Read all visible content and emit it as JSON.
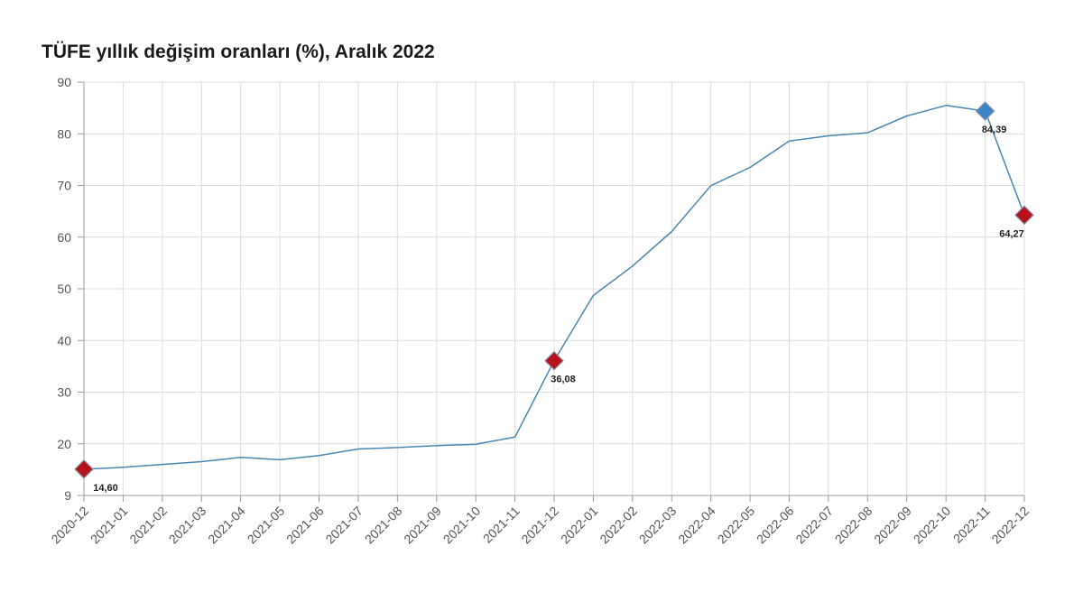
{
  "chart_data": {
    "type": "line",
    "title": "TÜFE yıllık değişim oranları (%), Aralık 2022",
    "xlabel": "",
    "ylabel": "",
    "ylim": [
      9,
      90
    ],
    "y_ticks": [
      9,
      20,
      30,
      40,
      50,
      60,
      70,
      80,
      90
    ],
    "grid": true,
    "categories": [
      "2020-12",
      "2021-01",
      "2021-02",
      "2021-03",
      "2021-04",
      "2021-05",
      "2021-06",
      "2021-07",
      "2021-08",
      "2021-09",
      "2021-10",
      "2021-11",
      "2021-12",
      "2022-01",
      "2022-02",
      "2022-03",
      "2022-04",
      "2022-05",
      "2022-06",
      "2022-07",
      "2022-08",
      "2022-09",
      "2022-10",
      "2022-11",
      "2022-12"
    ],
    "series": [
      {
        "values": [
          14.6,
          15.0,
          15.6,
          16.2,
          17.1,
          16.6,
          17.5,
          18.9,
          19.2,
          19.6,
          19.9,
          21.3,
          36.08,
          48.7,
          54.4,
          61.1,
          69.97,
          73.5,
          78.6,
          79.6,
          80.2,
          83.45,
          85.5,
          84.39,
          64.27
        ],
        "color": "#4a86b3"
      }
    ],
    "highlights": [
      {
        "category": "2020-12",
        "value": 14.6,
        "label": "14,60",
        "color": "#b5121b"
      },
      {
        "category": "2021-12",
        "value": 36.08,
        "label": "36,08",
        "color": "#b5121b"
      },
      {
        "category": "2022-11",
        "value": 84.39,
        "label": "84,39",
        "color": "#3a86c8"
      },
      {
        "category": "2022-12",
        "value": 64.27,
        "label": "64,27",
        "color": "#b5121b"
      }
    ]
  }
}
